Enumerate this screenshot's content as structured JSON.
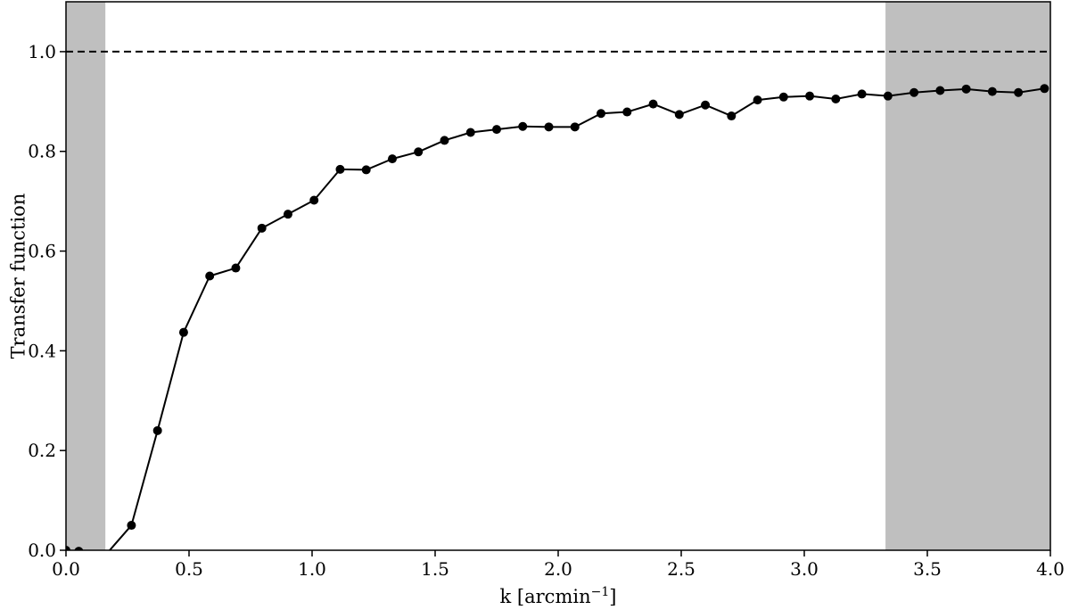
{
  "chart_data": {
    "type": "line",
    "title": "",
    "xlabel": "k [arcmin",
    "xlabel_sup": "−1",
    "xlabel_suffix": "]",
    "ylabel": "Transfer function",
    "xlim": [
      0.0,
      4.0
    ],
    "ylim": [
      0.0,
      1.1
    ],
    "x_ticks": [
      0.0,
      0.5,
      1.0,
      1.5,
      2.0,
      2.5,
      3.0,
      3.5,
      4.0
    ],
    "x_tick_labels": [
      "0.0",
      "0.5",
      "1.0",
      "1.5",
      "2.0",
      "2.5",
      "3.0",
      "3.5",
      "4.0"
    ],
    "y_ticks": [
      0.0,
      0.2,
      0.4,
      0.6,
      0.8,
      1.0
    ],
    "y_tick_labels": [
      "0.0",
      "0.2",
      "0.4",
      "0.6",
      "0.8",
      "1.0"
    ],
    "grid": false,
    "reference_line": {
      "y": 1.0,
      "style": "dashed",
      "color": "#000000"
    },
    "shaded_regions": [
      {
        "x0": 0.0,
        "x1": 0.16,
        "color": "#bfbfbf"
      },
      {
        "x0": 3.33,
        "x1": 4.0,
        "color": "#bfbfbf"
      }
    ],
    "series": [
      {
        "color": "#000000",
        "marker": "circle",
        "x": [
          0.0,
          0.052,
          0.16,
          0.266,
          0.372,
          0.478,
          0.584,
          0.69,
          0.796,
          0.902,
          1.008,
          1.114,
          1.22,
          1.326,
          1.432,
          1.538,
          1.644,
          1.75,
          1.856,
          1.962,
          2.068,
          2.174,
          2.28,
          2.386,
          2.492,
          2.598,
          2.704,
          2.81,
          2.916,
          3.022,
          3.128,
          3.234,
          3.34,
          3.446,
          3.552,
          3.658,
          3.764,
          3.87,
          3.976
        ],
        "y": [
          0.0,
          -0.002,
          -0.01,
          0.05,
          0.24,
          0.437,
          0.55,
          0.566,
          0.646,
          0.674,
          0.702,
          0.764,
          0.763,
          0.785,
          0.799,
          0.822,
          0.838,
          0.844,
          0.85,
          0.849,
          0.849,
          0.876,
          0.879,
          0.895,
          0.874,
          0.893,
          0.871,
          0.903,
          0.909,
          0.911,
          0.905,
          0.915,
          0.911,
          0.918,
          0.922,
          0.925,
          0.92,
          0.918,
          0.926
        ]
      }
    ]
  }
}
